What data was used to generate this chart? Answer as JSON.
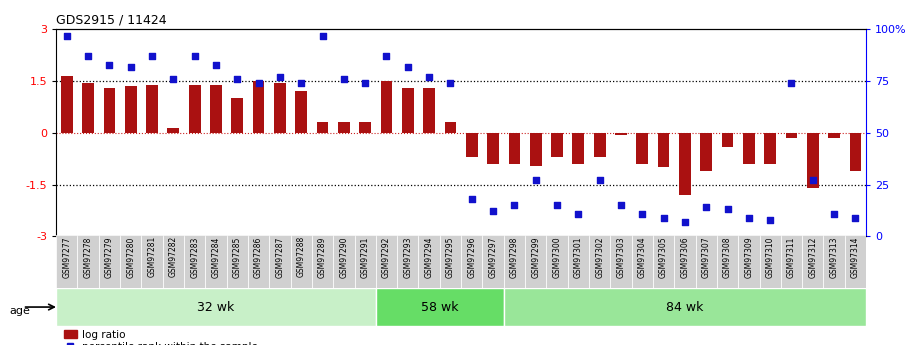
{
  "title": "GDS2915 / 11424",
  "samples": [
    "GSM97277",
    "GSM97278",
    "GSM97279",
    "GSM97280",
    "GSM97281",
    "GSM97282",
    "GSM97283",
    "GSM97284",
    "GSM97285",
    "GSM97286",
    "GSM97287",
    "GSM97288",
    "GSM97289",
    "GSM97290",
    "GSM97291",
    "GSM97292",
    "GSM97293",
    "GSM97294",
    "GSM97295",
    "GSM97296",
    "GSM97297",
    "GSM97298",
    "GSM97299",
    "GSM97300",
    "GSM97301",
    "GSM97302",
    "GSM97303",
    "GSM97304",
    "GSM97305",
    "GSM97306",
    "GSM97307",
    "GSM97308",
    "GSM97309",
    "GSM97310",
    "GSM97311",
    "GSM97312",
    "GSM97313",
    "GSM97314"
  ],
  "log_ratio": [
    1.65,
    1.45,
    1.3,
    1.35,
    1.4,
    0.15,
    1.4,
    1.4,
    1.0,
    1.5,
    1.45,
    1.2,
    0.3,
    0.3,
    0.3,
    1.5,
    1.3,
    1.3,
    0.3,
    -0.7,
    -0.9,
    -0.9,
    -0.95,
    -0.7,
    -0.9,
    -0.7,
    -0.05,
    -0.9,
    -1.0,
    -1.8,
    -1.1,
    -0.4,
    -0.9,
    -0.9,
    -0.15,
    -1.6,
    -0.15,
    -1.1
  ],
  "percentile": [
    97,
    87,
    83,
    82,
    87,
    76,
    87,
    83,
    76,
    74,
    77,
    74,
    97,
    76,
    74,
    87,
    82,
    77,
    74,
    18,
    12,
    15,
    27,
    15,
    11,
    27,
    15,
    11,
    9,
    7,
    14,
    13,
    9,
    8,
    74,
    27,
    11,
    9
  ],
  "groups": [
    {
      "label": "32 wk",
      "start": 0,
      "end": 14,
      "color": "#c8f0c8"
    },
    {
      "label": "58 wk",
      "start": 15,
      "end": 20,
      "color": "#66dd66"
    },
    {
      "label": "84 wk",
      "start": 21,
      "end": 37,
      "color": "#99e699"
    }
  ],
  "bar_color": "#aa1111",
  "scatter_color": "#1111cc",
  "ylim": [
    -3,
    3
  ],
  "yticks_left": [
    -3,
    -1.5,
    0,
    1.5,
    3
  ],
  "yticks_right": [
    0,
    25,
    50,
    75,
    100
  ],
  "hlines_black": [
    -1.5,
    1.5
  ],
  "hlines_red": [
    0
  ],
  "background_color": "#ffffff"
}
